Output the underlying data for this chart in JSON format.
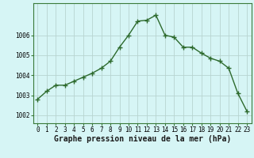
{
  "x": [
    0,
    1,
    2,
    3,
    4,
    5,
    6,
    7,
    8,
    9,
    10,
    11,
    12,
    13,
    14,
    15,
    16,
    17,
    18,
    19,
    20,
    21,
    22,
    23
  ],
  "y": [
    1002.8,
    1003.2,
    1003.5,
    1003.5,
    1003.7,
    1003.9,
    1004.1,
    1004.35,
    1004.7,
    1005.4,
    1006.0,
    1006.7,
    1006.75,
    1007.0,
    1006.0,
    1005.9,
    1005.4,
    1005.4,
    1005.1,
    1004.85,
    1004.7,
    1004.35,
    1003.1,
    1002.2
  ],
  "line_color": "#2d6a2d",
  "marker": "+",
  "marker_size": 4,
  "marker_color": "#2d6a2d",
  "bg_color": "#d6f5f5",
  "grid_color": "#b8d4d0",
  "xlabel": "Graphe pression niveau de la mer (hPa)",
  "xlabel_fontsize": 7,
  "ylim": [
    1001.6,
    1007.6
  ],
  "xlim": [
    -0.5,
    23.5
  ],
  "xtick_fontsize": 5.5,
  "ytick_fontsize": 5.5,
  "line_width": 1.0,
  "yticks": [
    1002,
    1003,
    1004,
    1005,
    1006
  ],
  "spine_color": "#3a7a3a"
}
